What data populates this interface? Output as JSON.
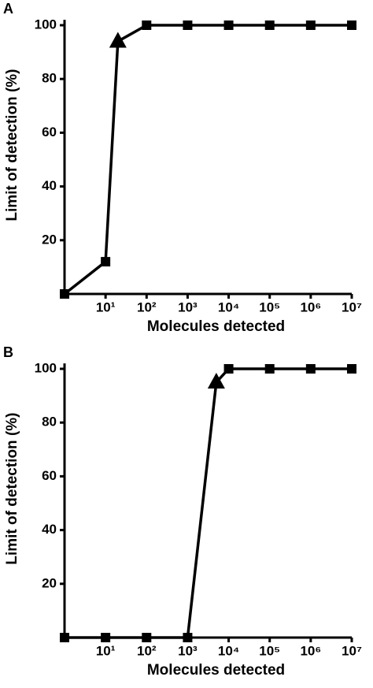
{
  "chart_data": [
    {
      "type": "line",
      "panel": "A",
      "x_label": "Molecules detected",
      "y_label": "Limit of detection (%)",
      "x_scale": "log",
      "xlim": [
        1,
        10000000
      ],
      "ylim": [
        0,
        102
      ],
      "xticks": [
        {
          "value": 10,
          "label": "10¹"
        },
        {
          "value": 100,
          "label": "10²"
        },
        {
          "value": 1000,
          "label": "10³"
        },
        {
          "value": 10000,
          "label": "10⁴"
        },
        {
          "value": 100000,
          "label": "10⁵"
        },
        {
          "value": 1000000,
          "label": "10⁶"
        },
        {
          "value": 10000000,
          "label": "10⁷"
        }
      ],
      "yticks": [
        20,
        40,
        60,
        80,
        100
      ],
      "series": [
        {
          "color": "#000000",
          "x": [
            1,
            10,
            20,
            100,
            1000,
            10000,
            100000,
            1000000,
            10000000
          ],
          "values": [
            0,
            12,
            94,
            100,
            100,
            100,
            100,
            100,
            100
          ],
          "markers": [
            "square",
            "square",
            "triangle",
            "square",
            "square",
            "square",
            "square",
            "square",
            "square"
          ]
        }
      ]
    },
    {
      "type": "line",
      "panel": "B",
      "x_label": "Molecules detected",
      "y_label": "Limit of detection (%)",
      "x_scale": "log",
      "xlim": [
        1,
        10000000
      ],
      "ylim": [
        0,
        102
      ],
      "xticks": [
        {
          "value": 10,
          "label": "10¹"
        },
        {
          "value": 100,
          "label": "10²"
        },
        {
          "value": 1000,
          "label": "10³"
        },
        {
          "value": 10000,
          "label": "10⁴"
        },
        {
          "value": 100000,
          "label": "10⁵"
        },
        {
          "value": 1000000,
          "label": "10⁶"
        },
        {
          "value": 10000000,
          "label": "10⁷"
        }
      ],
      "yticks": [
        20,
        40,
        60,
        80,
        100
      ],
      "series": [
        {
          "color": "#000000",
          "x": [
            1,
            10,
            100,
            1000,
            5000,
            10000,
            100000,
            1000000,
            10000000
          ],
          "values": [
            0,
            0,
            0,
            0,
            95,
            100,
            100,
            100,
            100
          ],
          "markers": [
            "square",
            "square",
            "square",
            "square",
            "triangle",
            "square",
            "square",
            "square",
            "square"
          ]
        }
      ]
    }
  ]
}
